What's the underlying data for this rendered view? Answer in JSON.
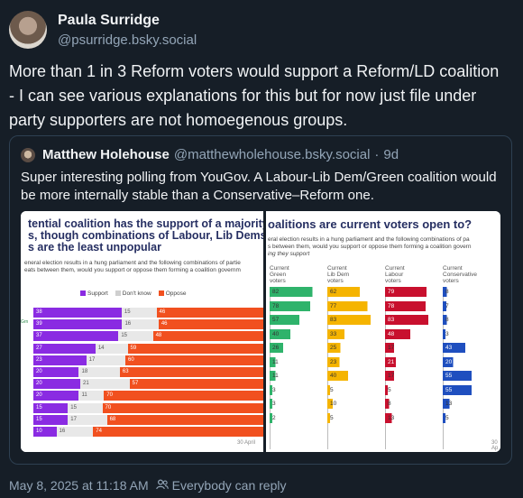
{
  "post": {
    "display_name": "Paula Surridge",
    "handle": "@psurridge.bsky.social",
    "text": "More than 1 in 3 Reform voters would support a Reform/LD coalition - I can see various explanations for this but for now just file under party supporters are not homoegenous groups.",
    "timestamp": "May 8, 2025 at 11:18 AM",
    "reply_setting": "Everybody can reply",
    "reply_icon": "people-icon"
  },
  "quote": {
    "display_name": "Matthew Holehouse",
    "handle": "@matthewholehouse.bsky.social",
    "separator": "·",
    "age": "9d",
    "text": "Super interesting polling from YouGov. A Labour-Lib Dem/Green coalition would be more internally stable than a Conservative–Reform one."
  },
  "left_image": {
    "title_lines": [
      "tential coalition has the support of a majority",
      "s, though combinations of Labour, Lib Dems",
      "s are the least unpopular"
    ],
    "subtitle_lines": [
      "eneral election results in a hung parliament and the following combinations of partie",
      "eats between them, would you support or oppose them forming a coalition governm"
    ],
    "legend": [
      "Support",
      "Don't know",
      "Oppose"
    ],
    "row_label_visible": "Grn",
    "date": "30 April",
    "colors": {
      "support": "#8a2be2",
      "dont_know": "#e8e8e8",
      "oppose": "#f1501f"
    }
  },
  "chart_data": [
    {
      "type": "bar",
      "stacked": true,
      "orientation": "horizontal",
      "title": "tential coalition has the support of a majority s, though combinations of Labour, Lib Dems s are the least unpopular",
      "series": [
        {
          "name": "Support",
          "values": [
            38,
            39,
            37,
            27,
            23,
            20,
            20,
            20,
            15,
            15,
            10
          ]
        },
        {
          "name": "Don't know",
          "values": [
            15,
            16,
            15,
            14,
            17,
            18,
            21,
            11,
            15,
            17,
            16
          ]
        },
        {
          "name": "Oppose",
          "values": [
            46,
            46,
            48,
            59,
            60,
            63,
            57,
            70,
            70,
            68,
            74
          ]
        }
      ]
    },
    {
      "type": "table",
      "title": "oalitions are current voters open to?",
      "columns": [
        {
          "header": [
            "Current",
            "Green",
            "voters"
          ],
          "color": "#2fb36b",
          "values": [
            82,
            78,
            57,
            40,
            26,
            11,
            11,
            3,
            3,
            2
          ]
        },
        {
          "header": [
            "Current",
            "Lib Dem",
            "voters"
          ],
          "color": "#f5b400",
          "values": [
            62,
            77,
            83,
            33,
            25,
            23,
            40,
            5,
            10,
            5
          ]
        },
        {
          "header": [
            "Current",
            "Labour",
            "voters"
          ],
          "color": "#c8102e",
          "values": [
            79,
            78,
            83,
            48,
            17,
            21,
            17,
            5,
            8,
            13
          ]
        },
        {
          "header": [
            "Current",
            "Conservative",
            "voters"
          ],
          "color": "#1f4fbf",
          "values": [
            8,
            7,
            8,
            3,
            43,
            20,
            55,
            55,
            13,
            5
          ]
        },
        {
          "header": [
            "Current",
            "R",
            "vo"
          ],
          "color": "#1aa7c9",
          "values": [
            5,
            5,
            5,
            2,
            3,
            3,
            2,
            2,
            5,
            5
          ]
        }
      ]
    }
  ],
  "right_image": {
    "title": "oalitions are current voters open to?",
    "subtitle_lines": [
      "eral election results in a hung parliament and the following combinations of pa",
      "s between them, would you support or oppose them forming a coalition govern",
      "ing they support"
    ],
    "date": "30 Ap"
  }
}
